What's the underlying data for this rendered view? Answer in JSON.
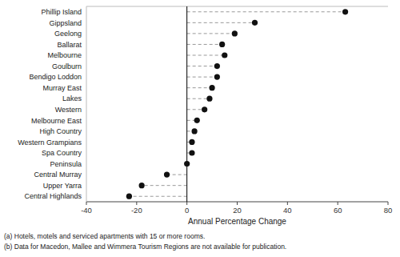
{
  "chart_data": {
    "type": "lollipop",
    "orientation": "horizontal",
    "categories": [
      "Phillip Island",
      "Gippsland",
      "Geelong",
      "Ballarat",
      "Melbourne",
      "Goulburn",
      "Bendigo Loddon",
      "Murray East",
      "Lakes",
      "Western",
      "Melbourne East",
      "High Country",
      "Western Grampians",
      "Spa Country",
      "Peninsula",
      "Central Murray",
      "Upper Yarra",
      "Central Highlands"
    ],
    "values": [
      63,
      27,
      19,
      14,
      15,
      12,
      12,
      10,
      9,
      7,
      4,
      3,
      2,
      2,
      0,
      -8,
      -18,
      -23
    ],
    "xlim": [
      -40,
      80
    ],
    "xticks": [
      -40,
      -20,
      0,
      20,
      40,
      60,
      80
    ],
    "xlabel": "Annual Percentage Change",
    "color": "#111111",
    "marker": "circle",
    "line_style": "dashed",
    "grid": false,
    "annotations": [
      "(a) Hotels, motels and serviced apartments with 15 or more rooms.",
      "(b) Data for Macedon, Mallee and Wimmera Tourism Regions are not available for publication."
    ]
  }
}
